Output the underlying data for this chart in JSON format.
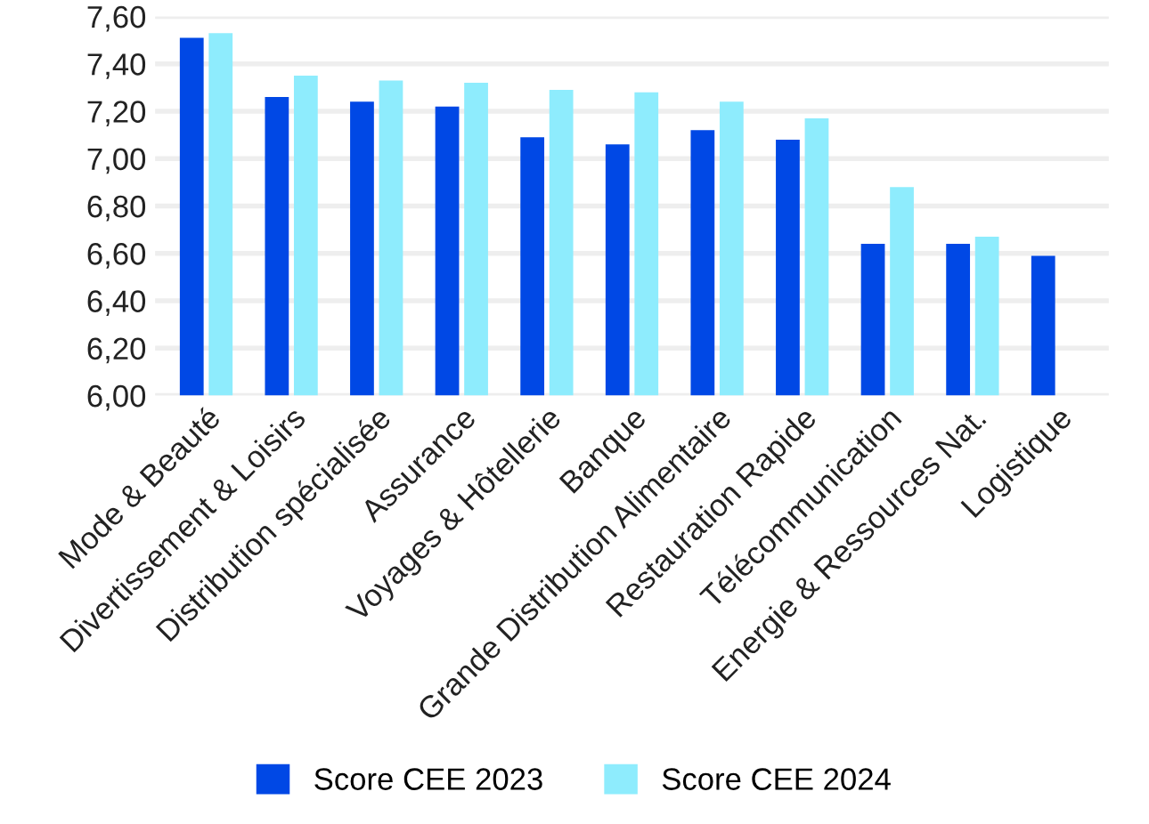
{
  "chart_data": {
    "type": "bar",
    "categories": [
      "Mode & Beauté",
      "Divertissement & Loisirs",
      "Distribution spécialisée",
      "Assurance",
      "Voyages & Hôtellerie",
      "Banque",
      "Grande Distribution Alimentaire",
      "Restauration Rapide",
      "Télécommunication",
      "Energie & Ressources Nat.",
      "Logistique"
    ],
    "series": [
      {
        "name": "Score CEE 2023",
        "color": "#0048e5",
        "values": [
          7.51,
          7.26,
          7.24,
          7.22,
          7.09,
          7.06,
          7.12,
          7.08,
          6.64,
          6.64,
          6.59
        ]
      },
      {
        "name": "Score CEE 2024",
        "color": "#8eecfd",
        "values": [
          7.53,
          7.35,
          7.33,
          7.32,
          7.29,
          7.28,
          7.24,
          7.17,
          6.88,
          6.67,
          null
        ]
      }
    ],
    "ylim": [
      6.0,
      7.6
    ],
    "yticks": [
      {
        "value": 6.0,
        "label": "6,00"
      },
      {
        "value": 6.2,
        "label": "6,20"
      },
      {
        "value": 6.4,
        "label": "6,40"
      },
      {
        "value": 6.6,
        "label": "6,60"
      },
      {
        "value": 6.8,
        "label": "6,80"
      },
      {
        "value": 7.0,
        "label": "7,00"
      },
      {
        "value": 7.2,
        "label": "7,20"
      },
      {
        "value": 7.4,
        "label": "7,40"
      },
      {
        "value": 7.6,
        "label": "7,60"
      }
    ],
    "grid": "y",
    "legend": "bottom"
  }
}
